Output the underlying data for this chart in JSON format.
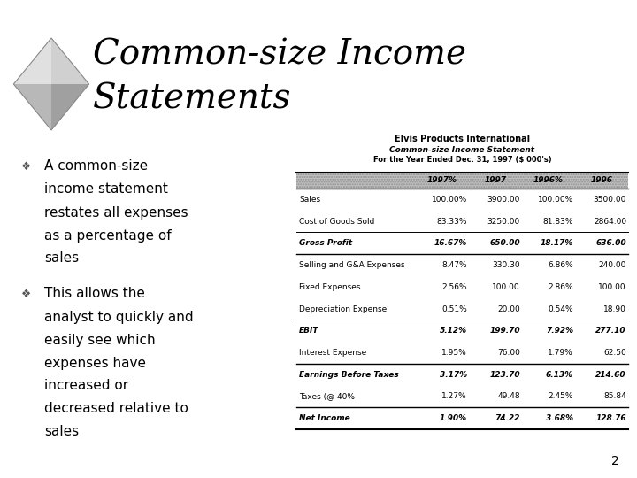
{
  "title_line1": "Common-size Income",
  "title_line2": "Statements",
  "bg_color": "#ffffff",
  "bullet1_lines": [
    "A common-size",
    "income statement",
    "restates all expenses",
    "as a percentage of",
    "sales"
  ],
  "bullet2_lines": [
    "This allows the",
    "analyst to quickly and",
    "easily see which",
    "expenses have",
    "increased or",
    "decreased relative to",
    "sales"
  ],
  "table_title1": "Elvis Products International",
  "table_title2": "Common-size Income Statement",
  "table_title3": "For the Year Ended Dec. 31, 1997 ($ 000's)",
  "header_row": [
    "",
    "1997%",
    "1997",
    "1996%",
    "1996"
  ],
  "rows": [
    [
      "Sales",
      "100.00%",
      "3900.00",
      "100.00%",
      "3500.00"
    ],
    [
      "Cost of Goods Sold",
      "83.33%",
      "3250.00",
      "81.83%",
      "2864.00"
    ],
    [
      "Gross Profit",
      "16.67%",
      "650.00",
      "18.17%",
      "636.00"
    ],
    [
      "Selling and G&A Expenses",
      "8.47%",
      "330.30",
      "6.86%",
      "240.00"
    ],
    [
      "Fixed Expenses",
      "2.56%",
      "100.00",
      "2.86%",
      "100.00"
    ],
    [
      "Depreciation Expense",
      "0.51%",
      "20.00",
      "0.54%",
      "18.90"
    ],
    [
      "EBIT",
      "5.12%",
      "199.70",
      "7.92%",
      "277.10"
    ],
    [
      "Interest Expense",
      "1.95%",
      "76.00",
      "1.79%",
      "62.50"
    ],
    [
      "Earnings Before Taxes",
      "3.17%",
      "123.70",
      "6.13%",
      "214.60"
    ],
    [
      "Taxes (@ 40%",
      "1.27%",
      "49.48",
      "2.45%",
      "85.84"
    ],
    [
      "Net Income",
      "1.90%",
      "74.22",
      "3.68%",
      "128.76"
    ]
  ],
  "bold_rows_0idx": [
    2,
    6,
    8,
    10
  ],
  "page_number": "2",
  "diamond_colors": [
    "#d8d8d8",
    "#a8a8a8",
    "#c0c0c0",
    "#e8e8e8"
  ],
  "title_fontsize": 28,
  "bullet_fontsize": 11,
  "table_fontsize": 6.5
}
